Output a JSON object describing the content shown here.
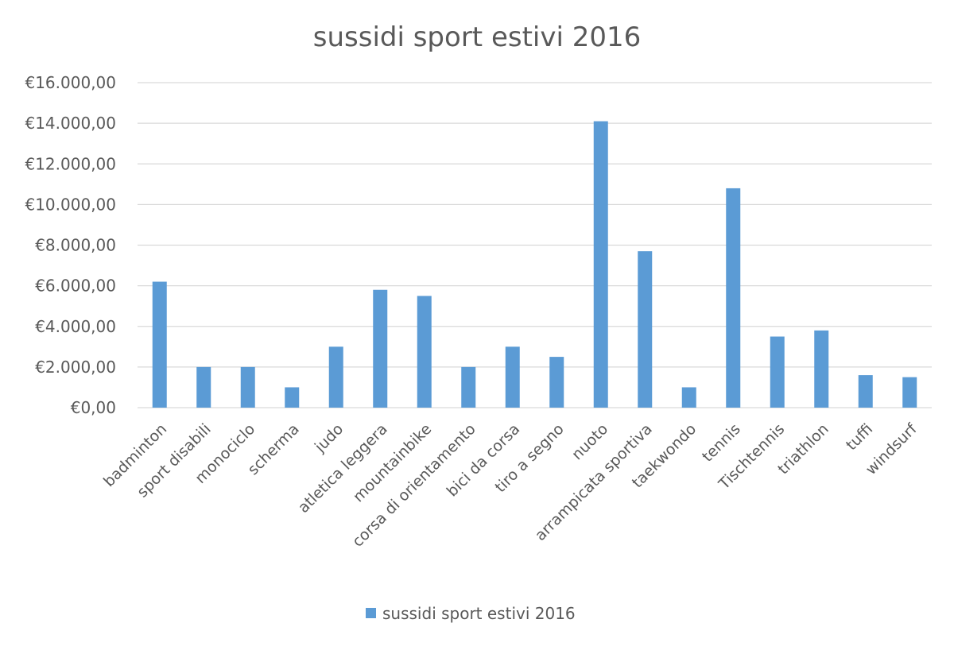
{
  "chart_data": {
    "type": "bar",
    "title": "sussidi sport estivi 2016",
    "xlabel": "",
    "ylabel": "",
    "categories": [
      "badminton",
      "sport disabili",
      "monociclo",
      "scherma",
      "judo",
      "atletica leggera",
      "mountainbike",
      "corsa di orientamento",
      "bici da corsa",
      "tiro a segno",
      "nuoto",
      "arrampicata sportiva",
      "taekwondo",
      "tennis",
      "Tischtennis",
      "triathlon",
      "tuffi",
      "windsurf"
    ],
    "series": [
      {
        "name": "sussidi sport estivi 2016",
        "color": "#5b9bd5",
        "values": [
          6200,
          2000,
          2000,
          1000,
          3000,
          5800,
          5500,
          2000,
          3000,
          2500,
          14100,
          7700,
          1000,
          10800,
          3500,
          3800,
          1600,
          1500
        ]
      }
    ],
    "ylim": [
      0,
      16000
    ],
    "yticks": [
      0,
      2000,
      4000,
      6000,
      8000,
      10000,
      12000,
      14000,
      16000
    ],
    "ytick_labels": [
      "€0,00",
      "€2.000,00",
      "€4.000,00",
      "€6.000,00",
      "€8.000,00",
      "€10.000,00",
      "€12.000,00",
      "€14.000,00",
      "€16.000,00"
    ],
    "grid": true,
    "legend": {
      "position": "bottom",
      "label": "sussidi sport estivi 2016"
    },
    "colors": {
      "bar": "#5b9bd5",
      "text": "#595959",
      "grid": "#d9d9d9"
    }
  }
}
